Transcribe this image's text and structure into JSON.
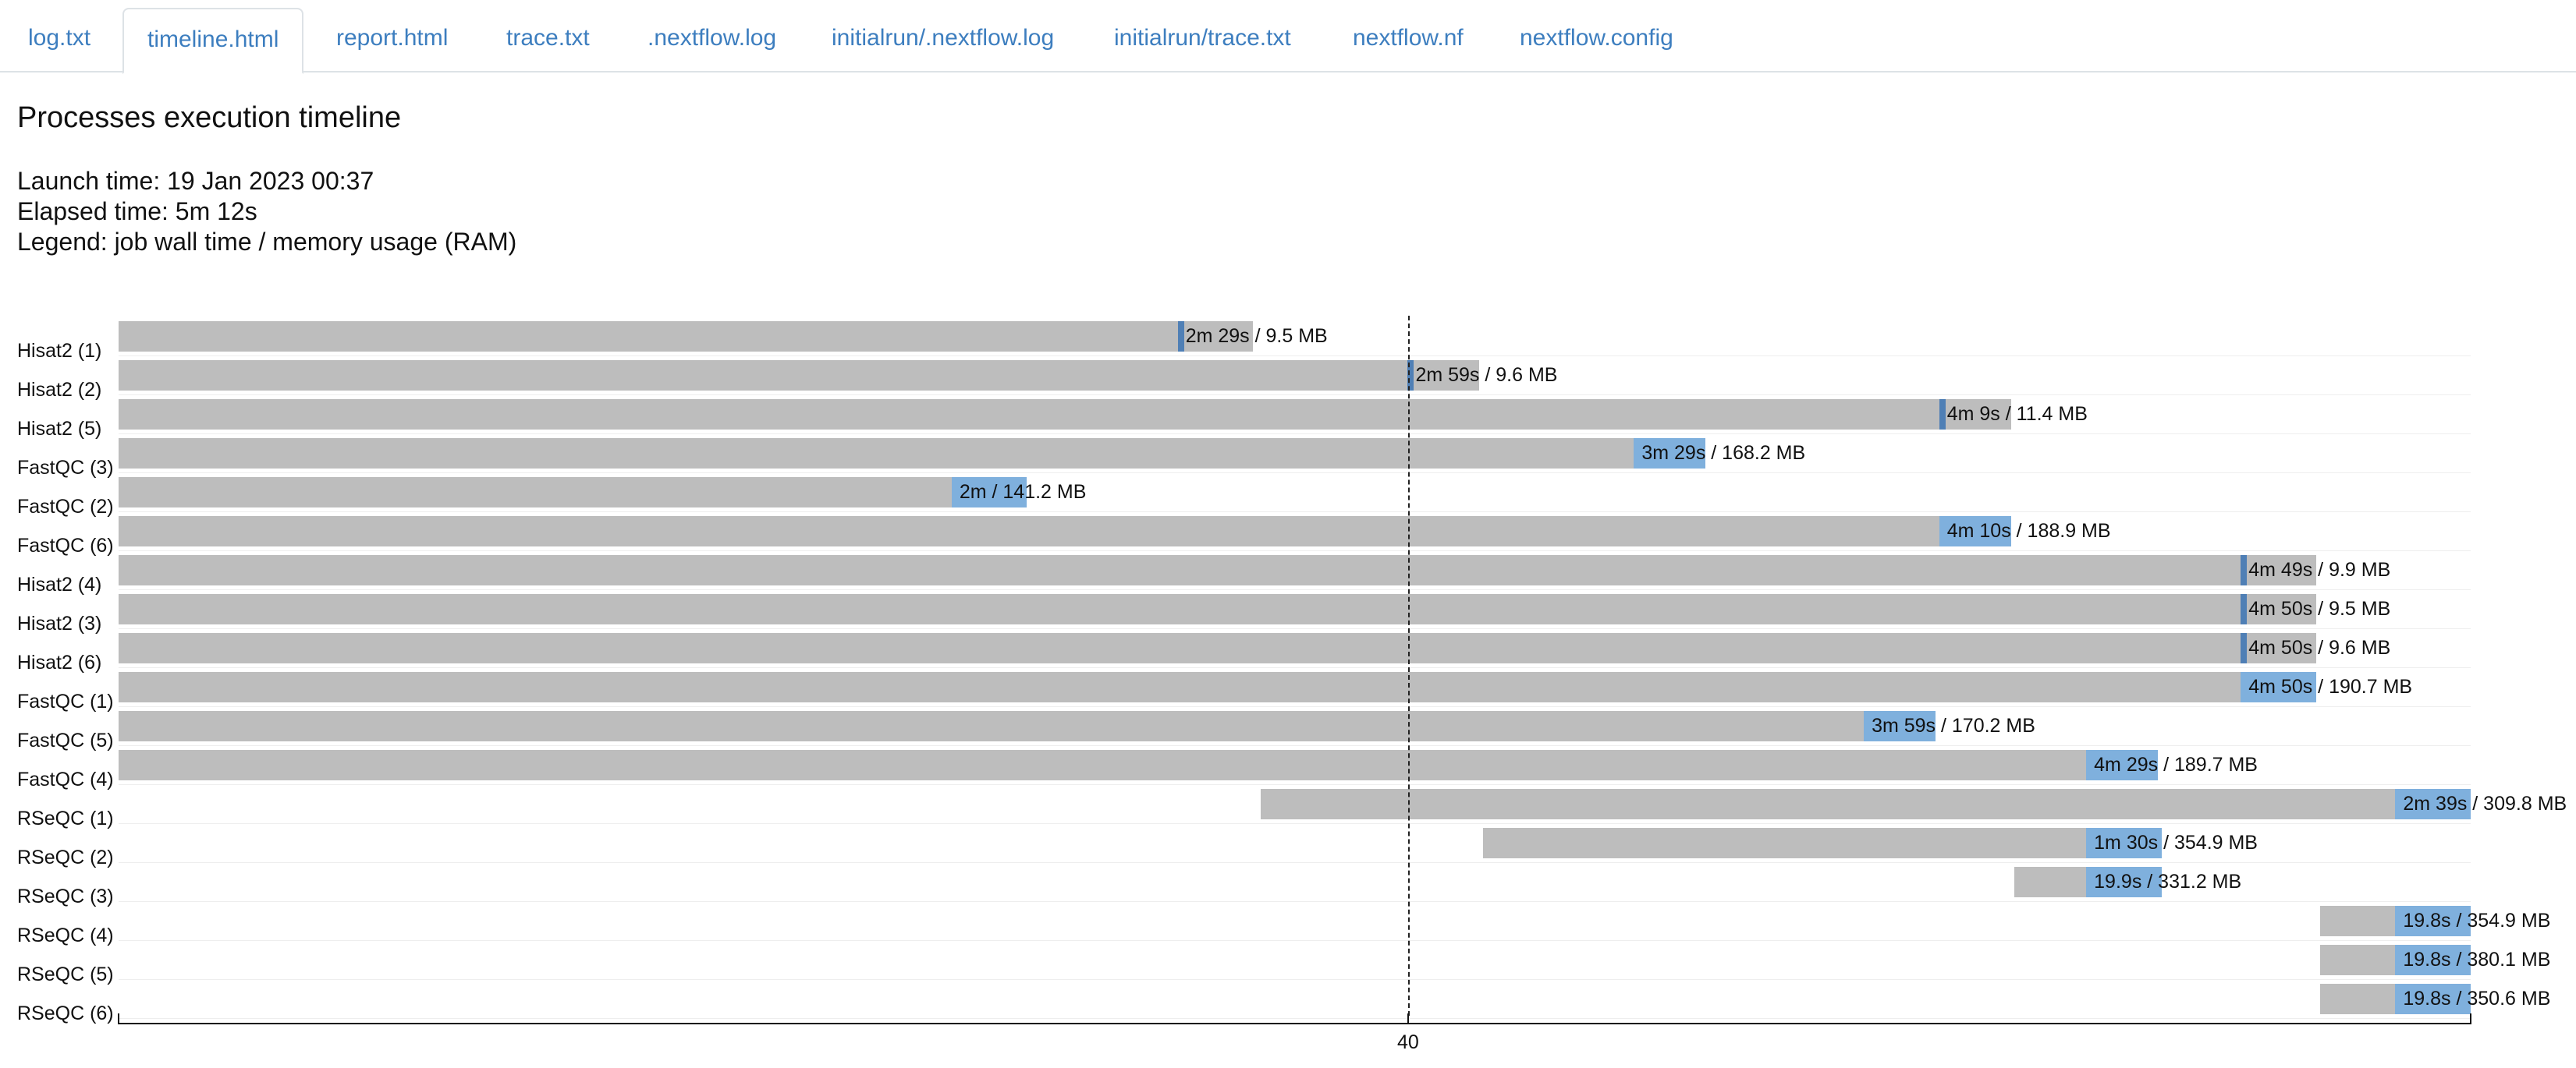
{
  "tabs": [
    {
      "label": "log.txt"
    },
    {
      "label": "timeline.html",
      "active": true
    },
    {
      "label": "report.html"
    },
    {
      "label": "trace.txt"
    },
    {
      "label": ".nextflow.log"
    },
    {
      "label": "initialrun/.nextflow.log"
    },
    {
      "label": "initialrun/trace.txt"
    },
    {
      "label": "nextflow.nf"
    },
    {
      "label": "nextflow.config"
    }
  ],
  "page": {
    "title": "Processes execution timeline",
    "launch_time": "Launch time: 19 Jan 2023 00:37",
    "elapsed_time": "Elapsed time: 5m 12s",
    "legend": "Legend: job wall time / memory usage (RAM)"
  },
  "colors": {
    "bar_total": "#bdbdbd",
    "bar_run_dark": "#4f7fb5",
    "bar_run_light": "#7fb0dd",
    "tab_text": "#3d7ebf"
  },
  "axis": {
    "tick_label": "40"
  },
  "chart_data": {
    "type": "timeline",
    "x_unit": "seconds since launch",
    "xlim": [
      0,
      312
    ],
    "marker_at": 40,
    "processes": [
      {
        "label": "Hisat2 (1)",
        "start": 0,
        "run_start": 140.5,
        "end": 150.5,
        "wall": "2m 29s",
        "mem": "9.5 MB",
        "shade": "dark"
      },
      {
        "label": "Hisat2 (2)",
        "start": 0,
        "run_start": 171,
        "end": 180.5,
        "wall": "2m 59s",
        "mem": "9.6 MB",
        "shade": "dark"
      },
      {
        "label": "Hisat2 (5)",
        "start": 0,
        "run_start": 241.5,
        "end": 251,
        "wall": "4m 9s",
        "mem": "11.4 MB",
        "shade": "dark"
      },
      {
        "label": "FastQC (3)",
        "start": 0,
        "run_start": 201,
        "end": 210.5,
        "wall": "3m 29s",
        "mem": "168.2 MB",
        "shade": "light"
      },
      {
        "label": "FastQC (2)",
        "start": 0,
        "run_start": 110.5,
        "end": 120.5,
        "wall": "2m",
        "mem": "141.2 MB",
        "shade": "light"
      },
      {
        "label": "FastQC (6)",
        "start": 0,
        "run_start": 241.5,
        "end": 251,
        "wall": "4m 10s",
        "mem": "188.9 MB",
        "shade": "light"
      },
      {
        "label": "Hisat2 (4)",
        "start": 0,
        "run_start": 281.5,
        "end": 291.5,
        "wall": "4m 49s",
        "mem": "9.9 MB",
        "shade": "dark"
      },
      {
        "label": "Hisat2 (3)",
        "start": 0,
        "run_start": 281.5,
        "end": 291.5,
        "wall": "4m 50s",
        "mem": "9.5 MB",
        "shade": "dark"
      },
      {
        "label": "Hisat2 (6)",
        "start": 0,
        "run_start": 281.5,
        "end": 291.5,
        "wall": "4m 50s",
        "mem": "9.6 MB",
        "shade": "dark"
      },
      {
        "label": "FastQC (1)",
        "start": 0,
        "run_start": 281.5,
        "end": 291.5,
        "wall": "4m 50s",
        "mem": "190.7 MB",
        "shade": "light"
      },
      {
        "label": "FastQC (5)",
        "start": 0,
        "run_start": 231.5,
        "end": 241,
        "wall": "3m 59s",
        "mem": "170.2 MB",
        "shade": "light"
      },
      {
        "label": "FastQC (4)",
        "start": 0,
        "run_start": 261,
        "end": 270.5,
        "wall": "4m 29s",
        "mem": "189.7 MB",
        "shade": "light"
      },
      {
        "label": "RSeQC (1)",
        "start": 151.5,
        "run_start": 302,
        "end": 312,
        "wall": "2m 39s",
        "mem": "309.8 MB",
        "shade": "light"
      },
      {
        "label": "RSeQC (2)",
        "start": 181,
        "run_start": 261,
        "end": 271,
        "wall": "1m 30s",
        "mem": "354.9 MB",
        "shade": "light"
      },
      {
        "label": "RSeQC (3)",
        "start": 251.5,
        "run_start": 261,
        "end": 271,
        "wall": "19.9s",
        "mem": "331.2 MB",
        "shade": "light"
      },
      {
        "label": "RSeQC (4)",
        "start": 292,
        "run_start": 302,
        "end": 312,
        "wall": "19.8s",
        "mem": "354.9 MB",
        "shade": "light"
      },
      {
        "label": "RSeQC (5)",
        "start": 292,
        "run_start": 302,
        "end": 312,
        "wall": "19.8s",
        "mem": "380.1 MB",
        "shade": "light"
      },
      {
        "label": "RSeQC (6)",
        "start": 292,
        "run_start": 302,
        "end": 312,
        "wall": "19.8s",
        "mem": "350.6 MB",
        "shade": "light"
      }
    ]
  }
}
